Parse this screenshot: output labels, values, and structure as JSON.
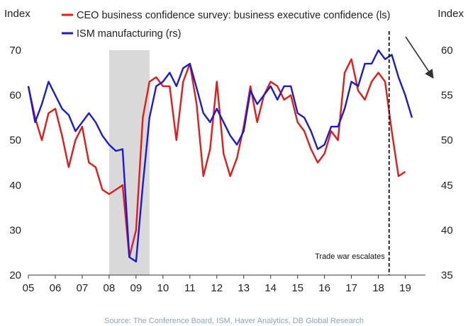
{
  "chart_data": {
    "type": "line",
    "left_axis_label": "Index",
    "right_axis_label": "Index",
    "left_ylim": [
      20,
      70
    ],
    "right_ylim": [
      35,
      60
    ],
    "left_ticks": [
      20,
      30,
      40,
      50,
      60,
      70
    ],
    "right_ticks": [
      35,
      40,
      45,
      50,
      55,
      60
    ],
    "xlim": [
      2005,
      2019.75
    ],
    "x_tick_labels": [
      "05",
      "06",
      "07",
      "08",
      "09",
      "10",
      "11",
      "12",
      "13",
      "14",
      "15",
      "16",
      "17",
      "18",
      "19"
    ],
    "x_tick_values": [
      2005,
      2006,
      2007,
      2008,
      2009,
      2010,
      2011,
      2012,
      2013,
      2014,
      2015,
      2016,
      2017,
      2018,
      2019
    ],
    "recession_shading": [
      2008.0,
      2009.5
    ],
    "grid": false,
    "legend_position": "top",
    "series": [
      {
        "name": "CEO business confidence survey: business executive confidence (ls)",
        "axis": "left",
        "color": "#e21a1a",
        "x": [
          2005.0,
          2005.25,
          2005.5,
          2005.75,
          2006.0,
          2006.25,
          2006.5,
          2006.75,
          2007.0,
          2007.25,
          2007.5,
          2007.75,
          2008.0,
          2008.25,
          2008.5,
          2008.75,
          2009.0,
          2009.25,
          2009.5,
          2009.75,
          2010.0,
          2010.25,
          2010.5,
          2010.75,
          2011.0,
          2011.25,
          2011.5,
          2011.75,
          2012.0,
          2012.25,
          2012.5,
          2012.75,
          2013.0,
          2013.25,
          2013.5,
          2013.75,
          2014.0,
          2014.25,
          2014.5,
          2014.75,
          2015.0,
          2015.25,
          2015.5,
          2015.75,
          2016.0,
          2016.25,
          2016.5,
          2016.75,
          2017.0,
          2017.25,
          2017.5,
          2017.75,
          2018.0,
          2018.25,
          2018.5,
          2018.75,
          2019.0
        ],
        "values": [
          62,
          55,
          50,
          56,
          57,
          51,
          44,
          50,
          53,
          45,
          44,
          39,
          38,
          39,
          40,
          24,
          30,
          55,
          63,
          64,
          62,
          62,
          50,
          63,
          67,
          58,
          42,
          48,
          63,
          47,
          42,
          46,
          53,
          62,
          54,
          60,
          63,
          62,
          59,
          60,
          54,
          52,
          48,
          45,
          47,
          52,
          50,
          65,
          68,
          61,
          59,
          63,
          65,
          63,
          52,
          42,
          43
        ]
      },
      {
        "name": "ISM manufacturing (rs)",
        "axis": "right",
        "color": "#1a1ad6",
        "x": [
          2005.0,
          2005.25,
          2005.5,
          2005.75,
          2006.0,
          2006.25,
          2006.5,
          2006.75,
          2007.0,
          2007.25,
          2007.5,
          2007.75,
          2008.0,
          2008.25,
          2008.5,
          2008.75,
          2009.0,
          2009.25,
          2009.5,
          2009.75,
          2010.0,
          2010.25,
          2010.5,
          2010.75,
          2011.0,
          2011.25,
          2011.5,
          2011.75,
          2012.0,
          2012.25,
          2012.5,
          2012.75,
          2013.0,
          2013.25,
          2013.5,
          2013.75,
          2014.0,
          2014.25,
          2014.5,
          2014.75,
          2015.0,
          2015.25,
          2015.5,
          2015.75,
          2016.0,
          2016.25,
          2016.5,
          2016.75,
          2017.0,
          2017.25,
          2017.5,
          2017.75,
          2018.0,
          2018.25,
          2018.5,
          2018.75,
          2019.0,
          2019.25
        ],
        "values": [
          56,
          52,
          54,
          56.5,
          55,
          53.5,
          52.8,
          51,
          52,
          53,
          52,
          50.5,
          49.5,
          48.8,
          49,
          37,
          36.5,
          45,
          52.5,
          56,
          56.5,
          57.5,
          56,
          58,
          58.5,
          55.8,
          53,
          52,
          53.5,
          52,
          50.5,
          49.5,
          51,
          55.5,
          54,
          55,
          56,
          54.5,
          56,
          56,
          53,
          52.5,
          51,
          49,
          49.5,
          51.5,
          51.5,
          53.5,
          56.5,
          56,
          58.5,
          58.5,
          60,
          59,
          59.5,
          57,
          55,
          52.5
        ]
      }
    ],
    "annotations": [
      {
        "text": "Trade war escalates",
        "x": 2018.4
      }
    ]
  },
  "source": "Source: The Conference Board, ISM, Haver Analytics, DB Global Research"
}
